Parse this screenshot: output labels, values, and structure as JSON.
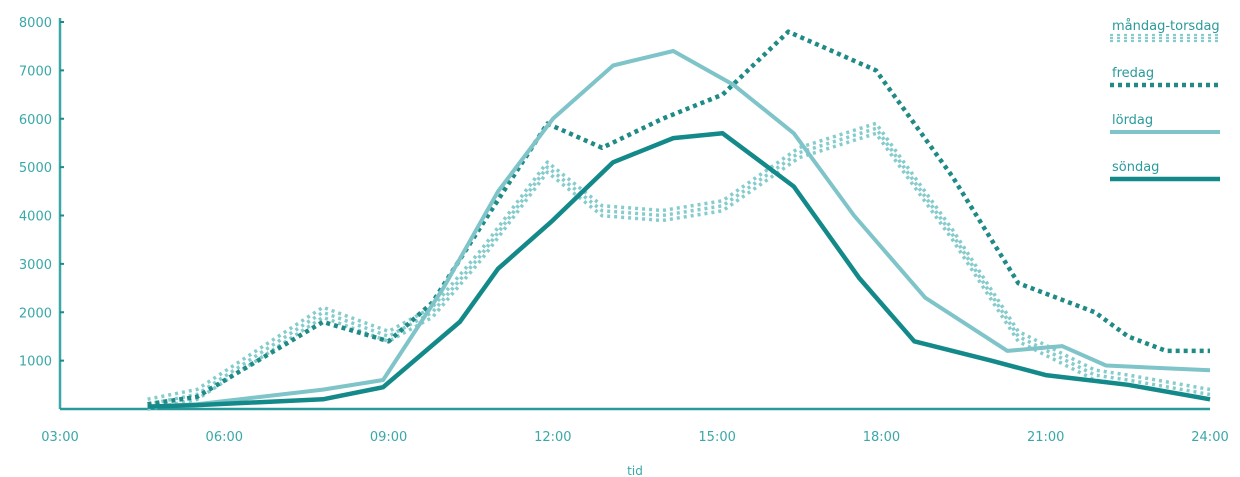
{
  "chart_data": {
    "type": "line",
    "title": "",
    "xlabel": "tid",
    "ylabel": "",
    "x_ticks": [
      "03:00",
      "06:00",
      "09:00",
      "12:00",
      "15:00",
      "18:00",
      "21:00",
      "24:00"
    ],
    "y_ticks": [
      1000,
      2000,
      3000,
      4000,
      5000,
      6000,
      7000,
      8000
    ],
    "xlim": [
      3,
      24
    ],
    "ylim": [
      0,
      8000
    ],
    "grid": false,
    "legend_position": "top-right",
    "series": [
      {
        "name": "måndag-torsdag",
        "color": "#86cccc",
        "style": "dotted-triple",
        "points": [
          [
            4.6,
            100
          ],
          [
            5.5,
            300
          ],
          [
            7.8,
            2000
          ],
          [
            9.0,
            1500
          ],
          [
            9.8,
            2000
          ],
          [
            10.7,
            3200
          ],
          [
            11.9,
            5000
          ],
          [
            12.9,
            4100
          ],
          [
            14.0,
            4000
          ],
          [
            15.1,
            4200
          ],
          [
            16.5,
            5300
          ],
          [
            17.9,
            5800
          ],
          [
            19.3,
            3600
          ],
          [
            20.5,
            1500
          ],
          [
            21.9,
            700
          ],
          [
            22.5,
            600
          ],
          [
            24.0,
            300
          ]
        ]
      },
      {
        "name": "fredag",
        "color": "#1f8a86",
        "style": "dotted",
        "points": [
          [
            4.6,
            100
          ],
          [
            5.5,
            250
          ],
          [
            7.8,
            1800
          ],
          [
            9.0,
            1400
          ],
          [
            9.8,
            2200
          ],
          [
            10.7,
            3800
          ],
          [
            11.9,
            5900
          ],
          [
            12.9,
            5400
          ],
          [
            14.0,
            6000
          ],
          [
            15.1,
            6500
          ],
          [
            16.3,
            7800
          ],
          [
            17.9,
            7000
          ],
          [
            19.3,
            4800
          ],
          [
            20.5,
            2600
          ],
          [
            21.9,
            2000
          ],
          [
            22.5,
            1500
          ],
          [
            23.2,
            1200
          ],
          [
            24.0,
            1200
          ]
        ]
      },
      {
        "name": "lördag",
        "color": "#7ec4c8",
        "style": "solid",
        "points": [
          [
            4.6,
            50
          ],
          [
            5.5,
            100
          ],
          [
            7.8,
            400
          ],
          [
            8.9,
            600
          ],
          [
            10.0,
            2500
          ],
          [
            11.0,
            4500
          ],
          [
            12.0,
            6000
          ],
          [
            13.1,
            7100
          ],
          [
            14.2,
            7400
          ],
          [
            15.3,
            6700
          ],
          [
            16.4,
            5700
          ],
          [
            17.5,
            4000
          ],
          [
            18.8,
            2300
          ],
          [
            20.3,
            1200
          ],
          [
            21.3,
            1300
          ],
          [
            22.1,
            900
          ],
          [
            24.0,
            800
          ]
        ]
      },
      {
        "name": "söndag",
        "color": "#13898a",
        "style": "solid-thick",
        "points": [
          [
            4.6,
            50
          ],
          [
            5.5,
            80
          ],
          [
            7.8,
            200
          ],
          [
            8.9,
            450
          ],
          [
            10.3,
            1800
          ],
          [
            11.0,
            2900
          ],
          [
            12.0,
            3900
          ],
          [
            13.1,
            5100
          ],
          [
            14.2,
            5600
          ],
          [
            15.1,
            5700
          ],
          [
            16.4,
            4600
          ],
          [
            17.6,
            2700
          ],
          [
            18.6,
            1400
          ],
          [
            20.0,
            1000
          ],
          [
            21.0,
            700
          ],
          [
            22.5,
            500
          ],
          [
            24.0,
            200
          ]
        ]
      }
    ]
  }
}
